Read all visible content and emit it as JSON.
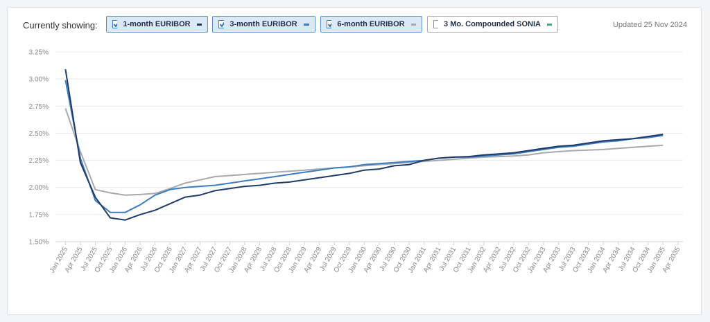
{
  "header": {
    "label": "Currently showing:",
    "updated": "Updated 25 Nov 2024"
  },
  "chart_data": {
    "type": "line",
    "x": [
      "2025-01",
      "2025-04",
      "2025-07",
      "2025-10",
      "2026-01",
      "2026-04",
      "2026-07",
      "2026-10",
      "2027-01",
      "2027-04",
      "2027-07",
      "2027-10",
      "2028-01",
      "2028-04",
      "2028-07",
      "2028-10",
      "2029-01",
      "2029-04",
      "2029-07",
      "2029-10",
      "2030-01",
      "2030-04",
      "2030-07",
      "2030-10",
      "2031-01",
      "2031-04",
      "2031-07",
      "2031-10",
      "2032-01",
      "2032-04",
      "2032-07",
      "2032-10",
      "2033-01",
      "2033-04",
      "2033-07",
      "2033-10",
      "2034-01",
      "2034-04",
      "2034-07",
      "2034-10",
      "2035-01"
    ],
    "series": [
      {
        "name": "1-month EURIBOR",
        "color": "#1f3a68",
        "checked": true,
        "values": [
          3.09,
          2.23,
          1.91,
          1.72,
          1.7,
          1.75,
          1.79,
          1.85,
          1.91,
          1.93,
          1.97,
          1.99,
          2.01,
          2.02,
          2.04,
          2.05,
          2.07,
          2.09,
          2.11,
          2.13,
          2.16,
          2.17,
          2.2,
          2.21,
          2.25,
          2.27,
          2.28,
          2.285,
          2.3,
          2.31,
          2.32,
          2.34,
          2.36,
          2.38,
          2.39,
          2.41,
          2.43,
          2.44,
          2.45,
          2.47,
          2.49
        ]
      },
      {
        "name": "3-month EURIBOR",
        "color": "#3d7bbf",
        "checked": true,
        "values": [
          2.99,
          2.27,
          1.88,
          1.77,
          1.77,
          1.84,
          1.93,
          1.98,
          2.0,
          2.01,
          2.02,
          2.04,
          2.06,
          2.08,
          2.1,
          2.12,
          2.14,
          2.16,
          2.18,
          2.19,
          2.21,
          2.22,
          2.23,
          2.24,
          2.25,
          2.27,
          2.28,
          2.28,
          2.29,
          2.3,
          2.31,
          2.33,
          2.35,
          2.37,
          2.38,
          2.4,
          2.42,
          2.43,
          2.45,
          2.46,
          2.48
        ]
      },
      {
        "name": "6-month EURIBOR",
        "color": "#a6a9ad",
        "checked": true,
        "values": [
          2.73,
          2.33,
          1.98,
          1.95,
          1.93,
          1.935,
          1.945,
          1.99,
          2.04,
          2.07,
          2.1,
          2.11,
          2.12,
          2.13,
          2.14,
          2.15,
          2.16,
          2.17,
          2.18,
          2.19,
          2.2,
          2.21,
          2.22,
          2.23,
          2.24,
          2.25,
          2.26,
          2.27,
          2.28,
          2.285,
          2.29,
          2.3,
          2.32,
          2.33,
          2.34,
          2.345,
          2.35,
          2.36,
          2.37,
          2.38,
          2.39
        ]
      },
      {
        "name": "3 Mo. Compounded SONIA",
        "color": "#3dab8f",
        "checked": false
      }
    ],
    "xlim": [
      "2024-11",
      "2035-05"
    ],
    "xticks": [
      {
        "value": "2025-01",
        "label": "Jan 2025"
      },
      {
        "value": "2025-04",
        "label": "Apr 2025"
      },
      {
        "value": "2025-07",
        "label": "Jul 2025"
      },
      {
        "value": "2025-10",
        "label": "Oct 2025"
      },
      {
        "value": "2026-01",
        "label": "Jan 2026"
      },
      {
        "value": "2026-04",
        "label": "Apr 2026"
      },
      {
        "value": "2026-07",
        "label": "Jul 2026"
      },
      {
        "value": "2026-10",
        "label": "Oct 2026"
      },
      {
        "value": "2027-01",
        "label": "Jan 2027"
      },
      {
        "value": "2027-04",
        "label": "Apr 2027"
      },
      {
        "value": "2027-07",
        "label": "Jul 2027"
      },
      {
        "value": "2027-10",
        "label": "Oct 2027"
      },
      {
        "value": "2028-01",
        "label": "Jan 2028"
      },
      {
        "value": "2028-04",
        "label": "Apr 2028"
      },
      {
        "value": "2028-07",
        "label": "Jul 2028"
      },
      {
        "value": "2028-10",
        "label": "Oct 2028"
      },
      {
        "value": "2029-01",
        "label": "Jan 2029"
      },
      {
        "value": "2029-04",
        "label": "Apr 2029"
      },
      {
        "value": "2029-07",
        "label": "Jul 2029"
      },
      {
        "value": "2029-10",
        "label": "Oct 2029"
      },
      {
        "value": "2030-01",
        "label": "Jan 2030"
      },
      {
        "value": "2030-04",
        "label": "Apr 2030"
      },
      {
        "value": "2030-07",
        "label": "Jul 2030"
      },
      {
        "value": "2030-10",
        "label": "Oct 2030"
      },
      {
        "value": "2031-01",
        "label": "Jan 2031"
      },
      {
        "value": "2031-04",
        "label": "Apr 2031"
      },
      {
        "value": "2031-07",
        "label": "Jul 2031"
      },
      {
        "value": "2031-10",
        "label": "Oct 2031"
      },
      {
        "value": "2032-01",
        "label": "Jan 2032"
      },
      {
        "value": "2032-04",
        "label": "Apr 2032"
      },
      {
        "value": "2032-07",
        "label": "Jul 2032"
      },
      {
        "value": "2032-10",
        "label": "Oct 2032"
      },
      {
        "value": "2033-01",
        "label": "Jan 2033"
      },
      {
        "value": "2033-04",
        "label": "Apr 2033"
      },
      {
        "value": "2033-07",
        "label": "Jul 2033"
      },
      {
        "value": "2033-10",
        "label": "Oct 2033"
      },
      {
        "value": "2034-01",
        "label": "Jan 2034"
      },
      {
        "value": "2034-04",
        "label": "Apr 2034"
      },
      {
        "value": "2034-07",
        "label": "Jul 2034"
      },
      {
        "value": "2034-10",
        "label": "Oct 2034"
      },
      {
        "value": "2035-01",
        "label": "Jan 2035"
      },
      {
        "value": "2035-04",
        "label": "Apr 2035"
      }
    ],
    "ylim": [
      1.5,
      3.25
    ],
    "yticks": [
      {
        "value": 1.5,
        "label": "1.50%"
      },
      {
        "value": 1.75,
        "label": "1.75%"
      },
      {
        "value": 2.0,
        "label": "2.00%"
      },
      {
        "value": 2.25,
        "label": "2.25%"
      },
      {
        "value": 2.5,
        "label": "2.50%"
      },
      {
        "value": 2.75,
        "label": "2.75%"
      },
      {
        "value": 3.0,
        "label": "3.00%"
      },
      {
        "value": 3.25,
        "label": "3.25%"
      }
    ],
    "grid": true
  }
}
